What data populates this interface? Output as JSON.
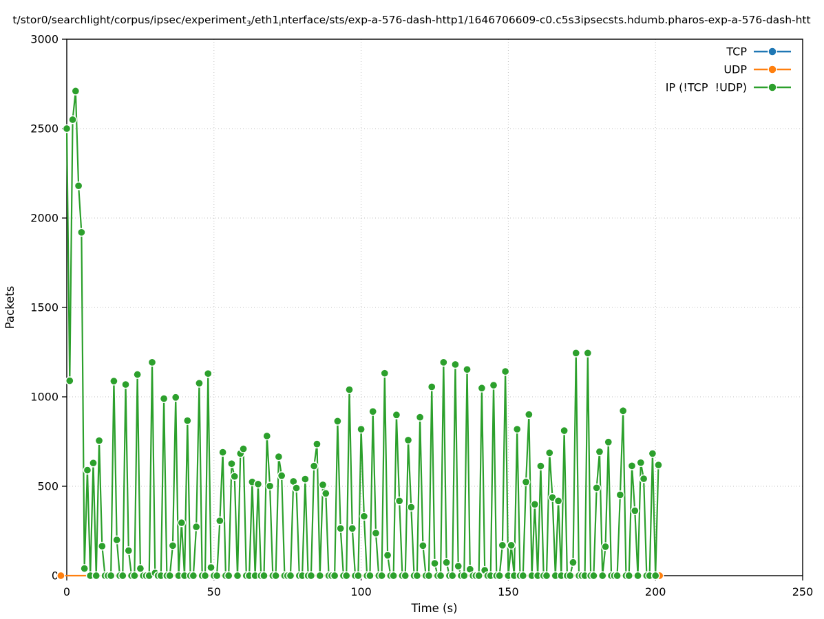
{
  "figure": {
    "background": "#ffffff",
    "title_segments": [
      {
        "text": "t/stor0/searchlight/corpus/ipsec/experiment",
        "sub": false
      },
      {
        "text": "3",
        "sub": true
      },
      {
        "text": "/eth1",
        "sub": false
      },
      {
        "text": "i",
        "sub": true
      },
      {
        "text": "nterface/sts/exp-a-576-dash-http1/1646706609-c0.c5s3ipsecsts.hdumb.pharos-exp-a-576-dash-htt",
        "sub": false
      }
    ]
  },
  "chart_data": {
    "type": "line",
    "title": "t/stor0/searchlight/corpus/ipsec/experiment_3/eth1_interface/sts/exp-a-576-dash-http1/1646706609-c0.c5s3ipsecsts.hdumb.pharos-exp-a-576-dash-htt",
    "xlabel": "Time (s)",
    "ylabel": "Packets",
    "xlim": [
      0,
      250
    ],
    "ylim": [
      0,
      3000
    ],
    "xticks": [
      0,
      50,
      100,
      150,
      200,
      250
    ],
    "yticks": [
      0,
      500,
      1000,
      1500,
      2000,
      2500,
      3000
    ],
    "grid": true,
    "grid_style": "dotted",
    "grid_color": "#c0c0c0",
    "legend_position": "upper right",
    "series": [
      {
        "name": "TCP",
        "color": "#1f77b4",
        "marker": "circle",
        "points": []
      },
      {
        "name": "UDP",
        "color": "#ff7f0e",
        "marker": "circle",
        "points": [
          [
            -2,
            0
          ],
          [
            201.4,
            0
          ]
        ]
      },
      {
        "name": "IP (!TCP  !UDP)",
        "color": "#2ca02c",
        "marker": "circle",
        "points": [
          [
            0,
            2500
          ],
          [
            1,
            1090
          ],
          [
            2,
            2550
          ],
          [
            3,
            2710
          ],
          [
            4,
            2180
          ],
          [
            5,
            1920
          ],
          [
            6,
            40
          ],
          [
            7,
            590
          ],
          [
            8,
            0
          ],
          [
            9,
            630
          ],
          [
            10,
            0
          ],
          [
            11,
            755
          ],
          [
            12,
            165
          ],
          [
            13,
            0
          ],
          [
            14,
            0
          ],
          [
            15,
            0
          ],
          [
            16,
            1088
          ],
          [
            17,
            200
          ],
          [
            18,
            0
          ],
          [
            19,
            0
          ],
          [
            20,
            1069
          ],
          [
            21,
            140
          ],
          [
            22,
            0
          ],
          [
            23,
            0
          ],
          [
            24,
            1125
          ],
          [
            25,
            40
          ],
          [
            26,
            0
          ],
          [
            27,
            0
          ],
          [
            28,
            0
          ],
          [
            29,
            1193
          ],
          [
            30,
            15
          ],
          [
            31,
            0
          ],
          [
            32,
            0
          ],
          [
            33,
            990
          ],
          [
            34,
            0
          ],
          [
            35,
            0
          ],
          [
            36,
            168
          ],
          [
            37,
            997
          ],
          [
            38,
            0
          ],
          [
            39,
            296
          ],
          [
            40,
            0
          ],
          [
            41,
            867
          ],
          [
            42,
            0
          ],
          [
            43,
            0
          ],
          [
            44,
            273
          ],
          [
            45,
            1076
          ],
          [
            46,
            0
          ],
          [
            47,
            0
          ],
          [
            48,
            1130
          ],
          [
            49,
            46
          ],
          [
            50,
            0
          ],
          [
            51,
            0
          ],
          [
            52,
            307
          ],
          [
            53,
            690
          ],
          [
            54,
            0
          ],
          [
            55,
            0
          ],
          [
            56,
            626
          ],
          [
            57,
            555
          ],
          [
            58,
            0
          ],
          [
            59,
            683
          ],
          [
            60,
            709
          ],
          [
            61,
            0
          ],
          [
            62,
            0
          ],
          [
            63,
            524
          ],
          [
            64,
            0
          ],
          [
            65,
            512
          ],
          [
            66,
            0
          ],
          [
            67,
            0
          ],
          [
            68,
            781
          ],
          [
            69,
            501
          ],
          [
            70,
            0
          ],
          [
            71,
            0
          ],
          [
            72,
            665
          ],
          [
            73,
            559
          ],
          [
            74,
            0
          ],
          [
            75,
            0
          ],
          [
            76,
            0
          ],
          [
            77,
            527
          ],
          [
            78,
            490
          ],
          [
            79,
            0
          ],
          [
            80,
            0
          ],
          [
            81,
            540
          ],
          [
            82,
            0
          ],
          [
            83,
            0
          ],
          [
            84,
            613
          ],
          [
            85,
            736
          ],
          [
            86,
            0
          ],
          [
            87,
            508
          ],
          [
            88,
            460
          ],
          [
            89,
            0
          ],
          [
            90,
            0
          ],
          [
            91,
            0
          ],
          [
            92,
            864
          ],
          [
            93,
            264
          ],
          [
            94,
            0
          ],
          [
            95,
            0
          ],
          [
            96,
            1040
          ],
          [
            97,
            264
          ],
          [
            98,
            0
          ],
          [
            99,
            0
          ],
          [
            100,
            819
          ],
          [
            101,
            332
          ],
          [
            102,
            0
          ],
          [
            103,
            0
          ],
          [
            104,
            918
          ],
          [
            105,
            238
          ],
          [
            106,
            0
          ],
          [
            107,
            0
          ],
          [
            108,
            1132
          ],
          [
            109,
            114
          ],
          [
            110,
            0
          ],
          [
            111,
            0
          ],
          [
            112,
            899
          ],
          [
            113,
            418
          ],
          [
            114,
            0
          ],
          [
            115,
            0
          ],
          [
            116,
            758
          ],
          [
            117,
            383
          ],
          [
            118,
            0
          ],
          [
            119,
            0
          ],
          [
            120,
            886
          ],
          [
            121,
            168
          ],
          [
            122,
            0
          ],
          [
            123,
            0
          ],
          [
            124,
            1056
          ],
          [
            125,
            69
          ],
          [
            126,
            0
          ],
          [
            127,
            0
          ],
          [
            128,
            1193
          ],
          [
            129,
            74
          ],
          [
            130,
            0
          ],
          [
            131,
            0
          ],
          [
            132,
            1181
          ],
          [
            133,
            53
          ],
          [
            134,
            0
          ],
          [
            135,
            0
          ],
          [
            136,
            1153
          ],
          [
            137,
            36
          ],
          [
            138,
            0
          ],
          [
            139,
            0
          ],
          [
            140,
            0
          ],
          [
            141,
            1049
          ],
          [
            142,
            30
          ],
          [
            143,
            0
          ],
          [
            144,
            0
          ],
          [
            145,
            1065
          ],
          [
            146,
            0
          ],
          [
            147,
            0
          ],
          [
            148,
            170
          ],
          [
            149,
            1142
          ],
          [
            150,
            0
          ],
          [
            151,
            170
          ],
          [
            152,
            0
          ],
          [
            153,
            819
          ],
          [
            154,
            0
          ],
          [
            155,
            0
          ],
          [
            156,
            524
          ],
          [
            157,
            901
          ],
          [
            158,
            0
          ],
          [
            159,
            399
          ],
          [
            160,
            0
          ],
          [
            161,
            613
          ],
          [
            162,
            0
          ],
          [
            163,
            0
          ],
          [
            164,
            687
          ],
          [
            165,
            437
          ],
          [
            166,
            0
          ],
          [
            167,
            418
          ],
          [
            168,
            0
          ],
          [
            169,
            811
          ],
          [
            170,
            0
          ],
          [
            171,
            0
          ],
          [
            172,
            74
          ],
          [
            173,
            1245
          ],
          [
            174,
            0
          ],
          [
            175,
            0
          ],
          [
            176,
            0
          ],
          [
            177,
            1245
          ],
          [
            178,
            0
          ],
          [
            179,
            0
          ],
          [
            180,
            491
          ],
          [
            181,
            693
          ],
          [
            182,
            0
          ],
          [
            183,
            162
          ],
          [
            184,
            747
          ],
          [
            185,
            0
          ],
          [
            186,
            0
          ],
          [
            187,
            0
          ],
          [
            188,
            452
          ],
          [
            189,
            922
          ],
          [
            190,
            0
          ],
          [
            191,
            0
          ],
          [
            192,
            614
          ],
          [
            193,
            363
          ],
          [
            194,
            0
          ],
          [
            195,
            632
          ],
          [
            196,
            542
          ],
          [
            197,
            0
          ],
          [
            198,
            0
          ],
          [
            199,
            683
          ],
          [
            200,
            0
          ],
          [
            201,
            619
          ]
        ]
      }
    ]
  }
}
